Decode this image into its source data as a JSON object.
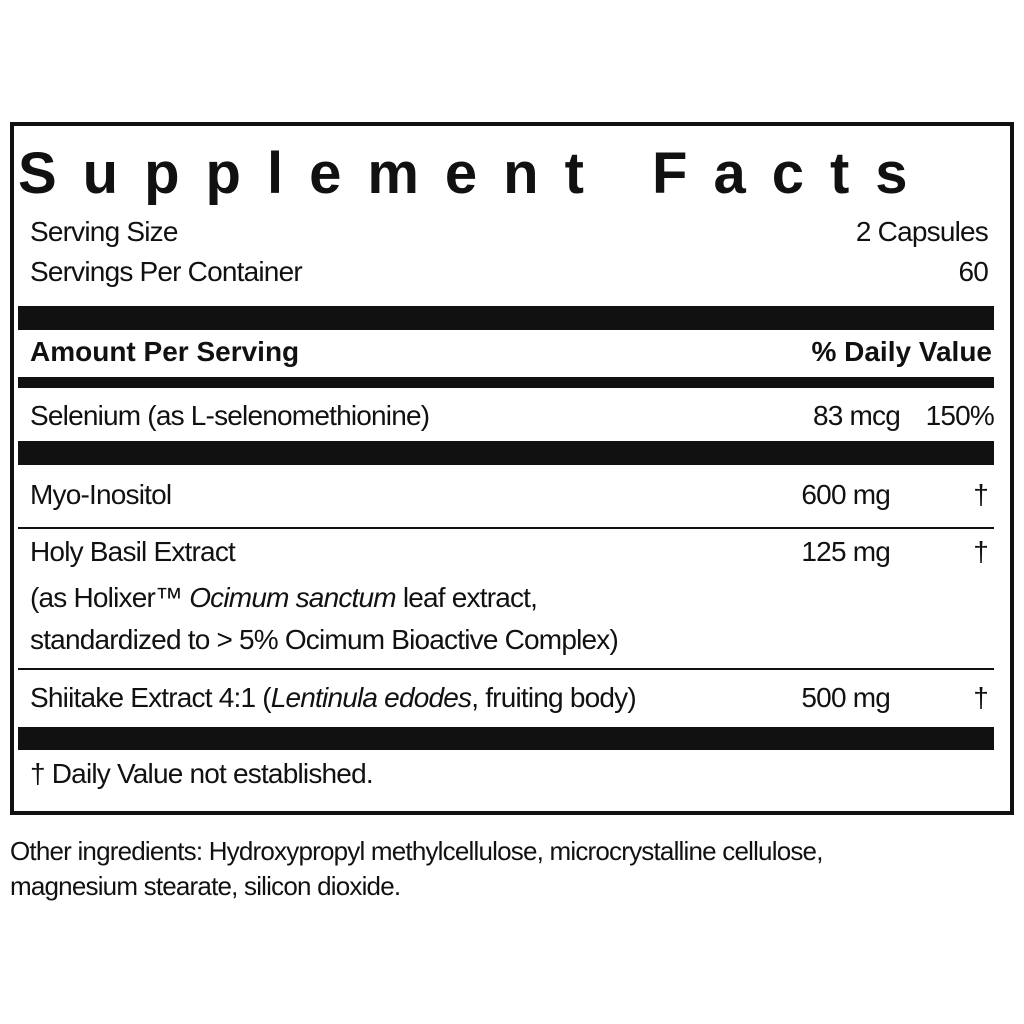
{
  "label": {
    "title": "Supplement Facts",
    "serving": [
      {
        "label": "Serving Size",
        "value": "2 Capsules"
      },
      {
        "label": "Servings Per Container",
        "value": "60"
      }
    ],
    "header": {
      "amount": "Amount Per Serving",
      "dv": "% Daily Value"
    },
    "rows": [
      {
        "name": "Selenium (as L-selenomethionine)",
        "amount": "83 mcg",
        "dv": "150%"
      },
      {
        "name": "Myo-Inositol",
        "amount": "600 mg",
        "dv": "†"
      },
      {
        "name": "Holy Basil Extract",
        "detail": [
          "(as Holixer™",
          "Ocimum sanctum",
          "leaf extract,",
          "standardized to > 5% Ocimum Bioactive Complex)"
        ],
        "amount": "125 mg",
        "dv": "†"
      },
      {
        "name": "Shiitake Extract 4:1 (",
        "name_italic": "Lentinula edodes",
        "name_end": ", fruiting body)",
        "amount": "500 mg",
        "dv": "†"
      }
    ],
    "footnote": "† Daily Value not established."
  },
  "other_ingredients": [
    "Other ingredients: Hydroxypropyl methylcellulose, microcrystalline cellulose,",
    "magnesium stearate, silicon dioxide."
  ]
}
